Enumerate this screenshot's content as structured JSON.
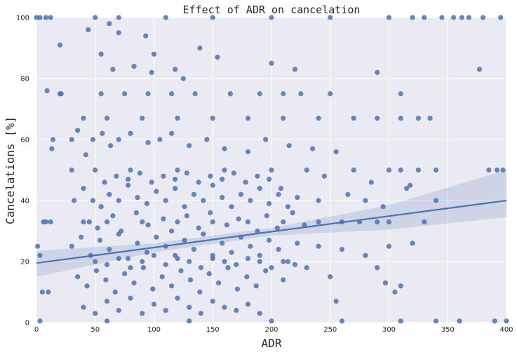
{
  "chart_data": {
    "type": "scatter",
    "title": "Effect of ADR on cancelation",
    "xlabel": "ADR",
    "ylabel": "Cancelations [%]",
    "xlim": [
      0,
      400
    ],
    "ylim": [
      0,
      100
    ],
    "xticks": [
      0,
      50,
      100,
      150,
      200,
      250,
      300,
      350,
      400
    ],
    "yticks": [
      0,
      20,
      40,
      60,
      80,
      100
    ],
    "grid": true,
    "colors": {
      "background": "#eaeaf2",
      "grid": "#ffffff",
      "point": "#4c72b0",
      "line": "#4c72b0",
      "band": "#4c72b0"
    },
    "regression": {
      "x": [
        0,
        100,
        200,
        300,
        400
      ],
      "y": [
        19.5,
        24.6,
        29.8,
        34.9,
        40.0
      ],
      "ci_low": [
        15.0,
        23.0,
        28.5,
        30.5,
        34.5
      ],
      "ci_high": [
        23.5,
        26.0,
        31.0,
        38.5,
        50.0
      ]
    },
    "points": [
      [
        0,
        100
      ],
      [
        3,
        100
      ],
      [
        8,
        100
      ],
      [
        12,
        100
      ],
      [
        50,
        100
      ],
      [
        70,
        100
      ],
      [
        110,
        100
      ],
      [
        150,
        100
      ],
      [
        200,
        100
      ],
      [
        250,
        100
      ],
      [
        300,
        100
      ],
      [
        320,
        100
      ],
      [
        330,
        100
      ],
      [
        345,
        100
      ],
      [
        355,
        100
      ],
      [
        362,
        100
      ],
      [
        368,
        100
      ],
      [
        380,
        100
      ],
      [
        395,
        100
      ],
      [
        3,
        0.5
      ],
      [
        60,
        0.5
      ],
      [
        130,
        0.5
      ],
      [
        200,
        0.5
      ],
      [
        260,
        0.5
      ],
      [
        310,
        0.5
      ],
      [
        340,
        0.5
      ],
      [
        360,
        0.5
      ],
      [
        390,
        0.5
      ],
      [
        400,
        0.5
      ],
      [
        20,
        91
      ],
      [
        44,
        96
      ],
      [
        62,
        98
      ],
      [
        70,
        95
      ],
      [
        93,
        94
      ],
      [
        139,
        90
      ],
      [
        154,
        87
      ],
      [
        100,
        88
      ],
      [
        83,
        84
      ],
      [
        98,
        82
      ],
      [
        55,
        88
      ],
      [
        65,
        83
      ],
      [
        118,
        83
      ],
      [
        125,
        80
      ],
      [
        220,
        83
      ],
      [
        200,
        85
      ],
      [
        290,
        82
      ],
      [
        377,
        83
      ],
      [
        9,
        76
      ],
      [
        21,
        75
      ],
      [
        30,
        50
      ],
      [
        50,
        50
      ],
      [
        80,
        50
      ],
      [
        120,
        50
      ],
      [
        160,
        50
      ],
      [
        200,
        50
      ],
      [
        230,
        50
      ],
      [
        270,
        50
      ],
      [
        300,
        50
      ],
      [
        310,
        50
      ],
      [
        325,
        50
      ],
      [
        340,
        50
      ],
      [
        385,
        50
      ],
      [
        392,
        50
      ],
      [
        397,
        50
      ],
      [
        40,
        67
      ],
      [
        60,
        67
      ],
      [
        90,
        67
      ],
      [
        120,
        67
      ],
      [
        150,
        67
      ],
      [
        180,
        67
      ],
      [
        210,
        67
      ],
      [
        240,
        67
      ],
      [
        270,
        67
      ],
      [
        290,
        67
      ],
      [
        310,
        67
      ],
      [
        325,
        67
      ],
      [
        335,
        67
      ],
      [
        40,
        33
      ],
      [
        60,
        33
      ],
      [
        90,
        33
      ],
      [
        120,
        33
      ],
      [
        150,
        33
      ],
      [
        180,
        33
      ],
      [
        210,
        33
      ],
      [
        240,
        33
      ],
      [
        260,
        33
      ],
      [
        275,
        33
      ],
      [
        290,
        33
      ],
      [
        300,
        33
      ],
      [
        330,
        33
      ],
      [
        55,
        75
      ],
      [
        75,
        75
      ],
      [
        95,
        75
      ],
      [
        115,
        75
      ],
      [
        135,
        75
      ],
      [
        165,
        75
      ],
      [
        190,
        75
      ],
      [
        210,
        75
      ],
      [
        225,
        75
      ],
      [
        250,
        75
      ],
      [
        310,
        75
      ],
      [
        1,
        25
      ],
      [
        3,
        22
      ],
      [
        6,
        33
      ],
      [
        8,
        33
      ],
      [
        12,
        33
      ],
      [
        5,
        10
      ],
      [
        10,
        10
      ],
      [
        13,
        57
      ],
      [
        20,
        75
      ],
      [
        14,
        60
      ],
      [
        30,
        60
      ],
      [
        35,
        63
      ],
      [
        42,
        55
      ],
      [
        48,
        60
      ],
      [
        56,
        62
      ],
      [
        63,
        58
      ],
      [
        70,
        60
      ],
      [
        80,
        62
      ],
      [
        95,
        59
      ],
      [
        105,
        60
      ],
      [
        115,
        62
      ],
      [
        130,
        58
      ],
      [
        145,
        60
      ],
      [
        160,
        57
      ],
      [
        180,
        56
      ],
      [
        195,
        60
      ],
      [
        215,
        58
      ],
      [
        235,
        57
      ],
      [
        255,
        56
      ],
      [
        32,
        40
      ],
      [
        40,
        44
      ],
      [
        48,
        40
      ],
      [
        55,
        38
      ],
      [
        62,
        42
      ],
      [
        70,
        40
      ],
      [
        78,
        45
      ],
      [
        86,
        41
      ],
      [
        94,
        39
      ],
      [
        102,
        43
      ],
      [
        110,
        40
      ],
      [
        118,
        44
      ],
      [
        126,
        38
      ],
      [
        134,
        42
      ],
      [
        142,
        40
      ],
      [
        150,
        45
      ],
      [
        158,
        41
      ],
      [
        166,
        38
      ],
      [
        174,
        42
      ],
      [
        182,
        40
      ],
      [
        190,
        44
      ],
      [
        198,
        39
      ],
      [
        206,
        42
      ],
      [
        214,
        38
      ],
      [
        222,
        41
      ],
      [
        240,
        40
      ],
      [
        265,
        42
      ],
      [
        280,
        40
      ],
      [
        295,
        38
      ],
      [
        315,
        44
      ],
      [
        340,
        40
      ],
      [
        30,
        25
      ],
      [
        38,
        28
      ],
      [
        46,
        22
      ],
      [
        54,
        27
      ],
      [
        62,
        24
      ],
      [
        70,
        29
      ],
      [
        78,
        21
      ],
      [
        86,
        26
      ],
      [
        94,
        23
      ],
      [
        102,
        28
      ],
      [
        110,
        25
      ],
      [
        118,
        22
      ],
      [
        126,
        27
      ],
      [
        134,
        24
      ],
      [
        142,
        29
      ],
      [
        150,
        21
      ],
      [
        158,
        26
      ],
      [
        166,
        23
      ],
      [
        174,
        28
      ],
      [
        182,
        25
      ],
      [
        190,
        22
      ],
      [
        198,
        27
      ],
      [
        206,
        24
      ],
      [
        214,
        20
      ],
      [
        222,
        26
      ],
      [
        240,
        25
      ],
      [
        260,
        24
      ],
      [
        280,
        22
      ],
      [
        300,
        25
      ],
      [
        320,
        26
      ],
      [
        35,
        15
      ],
      [
        43,
        12
      ],
      [
        51,
        17
      ],
      [
        59,
        14
      ],
      [
        67,
        10
      ],
      [
        75,
        16
      ],
      [
        83,
        13
      ],
      [
        91,
        18
      ],
      [
        99,
        11
      ],
      [
        107,
        15
      ],
      [
        115,
        12
      ],
      [
        123,
        17
      ],
      [
        131,
        14
      ],
      [
        139,
        10
      ],
      [
        147,
        16
      ],
      [
        155,
        13
      ],
      [
        163,
        18
      ],
      [
        171,
        11
      ],
      [
        179,
        15
      ],
      [
        187,
        12
      ],
      [
        195,
        17
      ],
      [
        210,
        14
      ],
      [
        230,
        18
      ],
      [
        250,
        15
      ],
      [
        290,
        18
      ],
      [
        297,
        13
      ],
      [
        305,
        10
      ],
      [
        310,
        12
      ],
      [
        40,
        5
      ],
      [
        50,
        3
      ],
      [
        60,
        7
      ],
      [
        70,
        4
      ],
      [
        80,
        8
      ],
      [
        90,
        3
      ],
      [
        100,
        6
      ],
      [
        110,
        4
      ],
      [
        120,
        8
      ],
      [
        130,
        5
      ],
      [
        140,
        3
      ],
      [
        150,
        7
      ],
      [
        160,
        5
      ],
      [
        170,
        4
      ],
      [
        180,
        6
      ],
      [
        190,
        3
      ],
      [
        255,
        7
      ],
      [
        50,
        20
      ],
      [
        60,
        19
      ],
      [
        70,
        21
      ],
      [
        80,
        18
      ],
      [
        90,
        20
      ],
      [
        100,
        22
      ],
      [
        110,
        19
      ],
      [
        120,
        21
      ],
      [
        130,
        20
      ],
      [
        140,
        18
      ],
      [
        150,
        22
      ],
      [
        160,
        20
      ],
      [
        170,
        19
      ],
      [
        180,
        21
      ],
      [
        190,
        20
      ],
      [
        200,
        18
      ],
      [
        210,
        20
      ],
      [
        220,
        19
      ],
      [
        45,
        33
      ],
      [
        52,
        31
      ],
      [
        65,
        35
      ],
      [
        72,
        30
      ],
      [
        85,
        36
      ],
      [
        95,
        32
      ],
      [
        108,
        34
      ],
      [
        115,
        30
      ],
      [
        128,
        35
      ],
      [
        138,
        31
      ],
      [
        148,
        36
      ],
      [
        162,
        32
      ],
      [
        172,
        34
      ],
      [
        188,
        30
      ],
      [
        196,
        35
      ],
      [
        205,
        31
      ],
      [
        218,
        36
      ],
      [
        228,
        32
      ],
      [
        58,
        46
      ],
      [
        68,
        48
      ],
      [
        78,
        47
      ],
      [
        88,
        49
      ],
      [
        98,
        46
      ],
      [
        108,
        48
      ],
      [
        118,
        47
      ],
      [
        128,
        49
      ],
      [
        138,
        46
      ],
      [
        148,
        48
      ],
      [
        158,
        47
      ],
      [
        168,
        49
      ],
      [
        178,
        46
      ],
      [
        188,
        48
      ],
      [
        198,
        47
      ],
      [
        208,
        44
      ],
      [
        245,
        48
      ],
      [
        285,
        46
      ],
      [
        318,
        45
      ]
    ]
  }
}
